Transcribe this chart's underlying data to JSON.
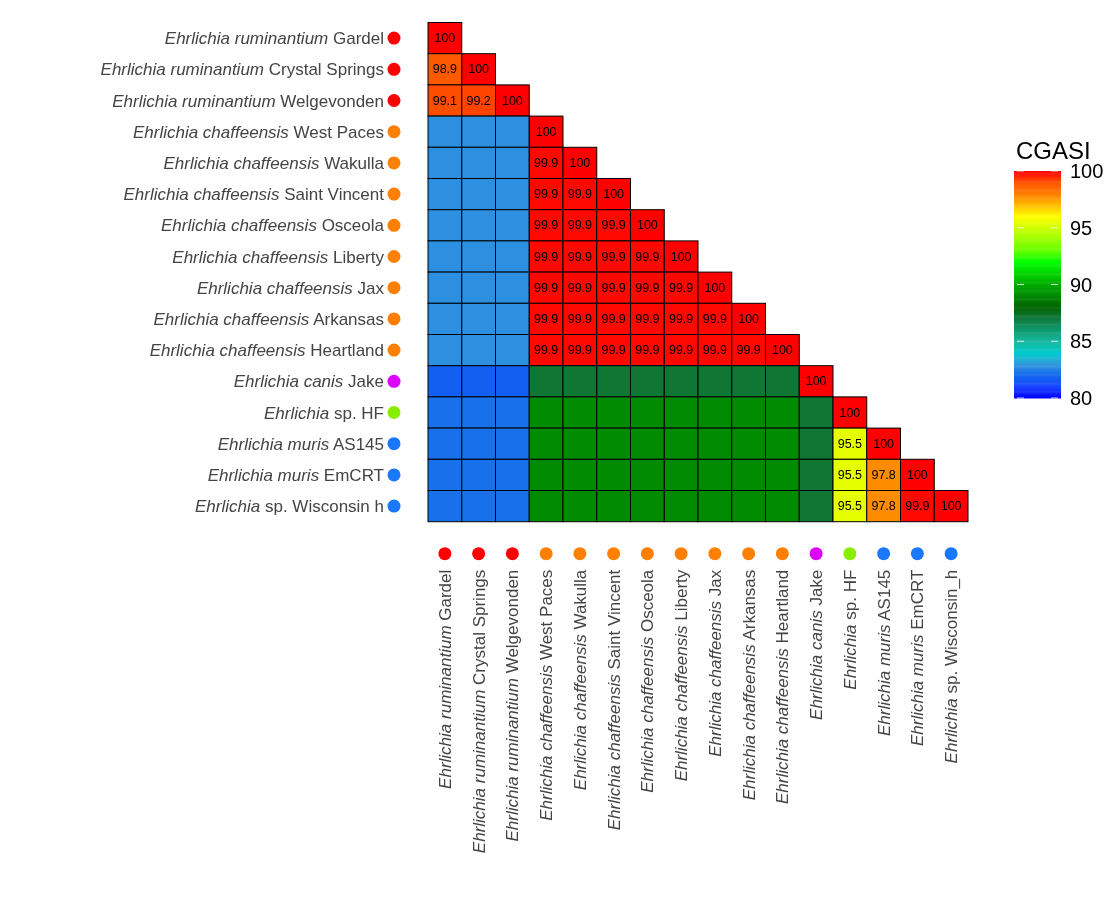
{
  "chart_data": {
    "type": "heatmap",
    "clabel": "CGASI",
    "categories": [
      "Ehrlichia ruminantium Gardel",
      "Ehrlichia ruminantium Crystal Springs",
      "Ehrlichia ruminantium Welgevonden",
      "Ehrlichia chaffeensis West Paces",
      "Ehrlichia chaffeensis Wakulla",
      "Ehrlichia chaffeensis Saint Vincent",
      "Ehrlichia chaffeensis Osceola",
      "Ehrlichia chaffeensis Liberty",
      "Ehrlichia chaffeensis Jax",
      "Ehrlichia chaffeensis Arkansas",
      "Ehrlichia chaffeensis Heartland",
      "Ehrlichia canis Jake",
      "Ehrlichia sp. HF",
      "Ehrlichia muris AS145",
      "Ehrlichia muris EmCRT",
      "Ehrlichia sp. Wisconsin_h"
    ],
    "y_categories": [
      "Ehrlichia ruminantium Gardel",
      "Ehrlichia ruminantium Crystal Springs",
      "Ehrlichia ruminantium Welgevonden",
      "Ehrlichia chaffeensis West Paces",
      "Ehrlichia chaffeensis Wakulla",
      "Ehrlichia chaffeensis Saint Vincent",
      "Ehrlichia chaffeensis Osceola",
      "Ehrlichia chaffeensis Liberty",
      "Ehrlichia chaffeensis Jax",
      "Ehrlichia chaffeensis Arkansas",
      "Ehrlichia chaffeensis Heartland",
      "Ehrlichia canis Jake",
      "Ehrlichia sp. HF",
      "Ehrlichia muris AS145",
      "Ehrlichia muris EmCRT",
      "Ehrlichia sp. Wisconsin h"
    ],
    "cells": [
      [
        100,
        null,
        null,
        null,
        null,
        null,
        null,
        null,
        null,
        null,
        null,
        null,
        null,
        null,
        null,
        null
      ],
      [
        98.9,
        100,
        null,
        null,
        null,
        null,
        null,
        null,
        null,
        null,
        null,
        null,
        null,
        null,
        null,
        null
      ],
      [
        99.1,
        99.2,
        100,
        null,
        null,
        null,
        null,
        null,
        null,
        null,
        null,
        null,
        null,
        null,
        null,
        null
      ],
      [
        82.8,
        82.8,
        82.8,
        100,
        null,
        null,
        null,
        null,
        null,
        null,
        null,
        null,
        null,
        null,
        null,
        null
      ],
      [
        82.8,
        82.8,
        82.8,
        99.9,
        100,
        null,
        null,
        null,
        null,
        null,
        null,
        null,
        null,
        null,
        null,
        null
      ],
      [
        82.8,
        82.8,
        82.8,
        99.9,
        99.9,
        100,
        null,
        null,
        null,
        null,
        null,
        null,
        null,
        null,
        null,
        null
      ],
      [
        82.8,
        82.8,
        82.8,
        99.9,
        99.9,
        99.9,
        100,
        null,
        null,
        null,
        null,
        null,
        null,
        null,
        null,
        null
      ],
      [
        82.8,
        82.8,
        82.8,
        99.9,
        99.9,
        99.9,
        99.9,
        100,
        null,
        null,
        null,
        null,
        null,
        null,
        null,
        null
      ],
      [
        82.8,
        82.8,
        82.8,
        99.9,
        99.9,
        99.9,
        99.9,
        99.9,
        100,
        null,
        null,
        null,
        null,
        null,
        null,
        null
      ],
      [
        82.8,
        82.8,
        82.8,
        99.9,
        99.9,
        99.9,
        99.9,
        99.9,
        99.9,
        100,
        null,
        null,
        null,
        null,
        null,
        null
      ],
      [
        82.8,
        82.8,
        82.8,
        99.9,
        99.9,
        99.9,
        99.9,
        99.9,
        99.9,
        99.9,
        100,
        null,
        null,
        null,
        null,
        null
      ],
      [
        81.8,
        81.8,
        81.8,
        87.2,
        87.2,
        87.2,
        87.2,
        87.2,
        87.2,
        87.2,
        87.2,
        100,
        null,
        null,
        null,
        null
      ],
      [
        82.2,
        82.2,
        82.2,
        89.1,
        89.1,
        89.1,
        89.1,
        89.1,
        89.1,
        89.1,
        89.1,
        87.2,
        100,
        null,
        null,
        null
      ],
      [
        82.2,
        82.2,
        82.2,
        89.1,
        89.1,
        89.1,
        89.1,
        89.1,
        89.1,
        89.1,
        89.1,
        87.2,
        95.5,
        100,
        null,
        null
      ],
      [
        82.2,
        82.2,
        82.2,
        89.1,
        89.1,
        89.1,
        89.1,
        89.1,
        89.1,
        89.1,
        89.1,
        87.2,
        95.5,
        97.8,
        100,
        null
      ],
      [
        82.2,
        82.2,
        82.2,
        89.1,
        89.1,
        89.1,
        89.1,
        89.1,
        89.1,
        89.1,
        89.1,
        87.2,
        95.5,
        97.8,
        99.9,
        100
      ]
    ],
    "cell_labels": [
      [
        "100",
        null,
        null,
        null,
        null,
        null,
        null,
        null,
        null,
        null,
        null,
        null,
        null,
        null,
        null,
        null
      ],
      [
        "98.9",
        "100",
        null,
        null,
        null,
        null,
        null,
        null,
        null,
        null,
        null,
        null,
        null,
        null,
        null,
        null
      ],
      [
        "99.1",
        "99.2",
        "100",
        null,
        null,
        null,
        null,
        null,
        null,
        null,
        null,
        null,
        null,
        null,
        null,
        null
      ],
      [
        null,
        null,
        null,
        "100",
        null,
        null,
        null,
        null,
        null,
        null,
        null,
        null,
        null,
        null,
        null,
        null
      ],
      [
        null,
        null,
        null,
        "99.9",
        "100",
        null,
        null,
        null,
        null,
        null,
        null,
        null,
        null,
        null,
        null,
        null
      ],
      [
        null,
        null,
        null,
        "99.9",
        "99.9",
        "100",
        null,
        null,
        null,
        null,
        null,
        null,
        null,
        null,
        null,
        null
      ],
      [
        null,
        null,
        null,
        "99.9",
        "99.9",
        "99.9",
        "100",
        null,
        null,
        null,
        null,
        null,
        null,
        null,
        null,
        null
      ],
      [
        null,
        null,
        null,
        "99.9",
        "99.9",
        "99.9",
        "99.9",
        "100",
        null,
        null,
        null,
        null,
        null,
        null,
        null,
        null
      ],
      [
        null,
        null,
        null,
        "99.9",
        "99.9",
        "99.9",
        "99.9",
        "99.9",
        "100",
        null,
        null,
        null,
        null,
        null,
        null,
        null
      ],
      [
        null,
        null,
        null,
        "99.9",
        "99.9",
        "99.9",
        "99.9",
        "99.9",
        "99.9",
        "100",
        null,
        null,
        null,
        null,
        null,
        null
      ],
      [
        null,
        null,
        null,
        "99.9",
        "99.9",
        "99.9",
        "99.9",
        "99.9",
        "99.9",
        "99.9",
        "100",
        null,
        null,
        null,
        null,
        null
      ],
      [
        null,
        null,
        null,
        null,
        null,
        null,
        null,
        null,
        null,
        null,
        null,
        "100",
        null,
        null,
        null,
        null
      ],
      [
        null,
        null,
        null,
        null,
        null,
        null,
        null,
        null,
        null,
        null,
        null,
        null,
        "100",
        null,
        null,
        null
      ],
      [
        null,
        null,
        null,
        null,
        null,
        null,
        null,
        null,
        null,
        null,
        null,
        null,
        "95.5",
        "100",
        null,
        null
      ],
      [
        null,
        null,
        null,
        null,
        null,
        null,
        null,
        null,
        null,
        null,
        null,
        null,
        "95.5",
        "97.8",
        "100",
        null
      ],
      [
        null,
        null,
        null,
        null,
        null,
        null,
        null,
        null,
        null,
        null,
        null,
        null,
        "95.5",
        "97.8",
        "99.9",
        "100"
      ]
    ],
    "clim": [
      80,
      100
    ],
    "cticks": [
      80,
      85,
      90,
      95,
      100
    ],
    "colors": [
      "#0000ff",
      "#1a44ff",
      "#1166ee",
      "#3399dd",
      "#00cccc",
      "#17b8a0",
      "#0e9a6e",
      "#137a40",
      "#006400",
      "#008800",
      "#00aa00",
      "#00d400",
      "#00ff00",
      "#66ff00",
      "#99ff00",
      "#ccff00",
      "#ffff00",
      "#ffbf00",
      "#ff7f00",
      "#ff5500",
      "#ff0000"
    ]
  }
}
